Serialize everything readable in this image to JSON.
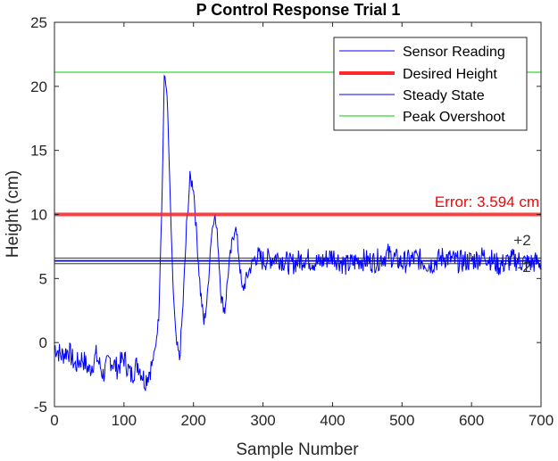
{
  "chart_data": {
    "type": "line",
    "title": "P Control Response Trial 1",
    "xlabel": "Sample Number",
    "ylabel": "Height (cm)",
    "xlim": [
      0,
      700
    ],
    "ylim": [
      -5,
      25
    ],
    "xticks": [
      "0",
      "100",
      "200",
      "300",
      "400",
      "500",
      "600",
      "700"
    ],
    "yticks": [
      "-5",
      "0",
      "5",
      "10",
      "15",
      "20",
      "25"
    ],
    "grid": false,
    "legend_position": "top-right",
    "series": [
      {
        "name": "Sensor Reading",
        "color": "#0000ff",
        "x": [
          0,
          10,
          20,
          30,
          40,
          50,
          60,
          70,
          80,
          90,
          100,
          110,
          120,
          130,
          140,
          145,
          150,
          155,
          158,
          162,
          165,
          170,
          175,
          180,
          185,
          190,
          195,
          200,
          205,
          210,
          215,
          220,
          225,
          230,
          235,
          240,
          245,
          250,
          255,
          260,
          265,
          270,
          280,
          290,
          300,
          320,
          340,
          360,
          380,
          400,
          420,
          440,
          460,
          480,
          500,
          520,
          540,
          560,
          580,
          600,
          620,
          640,
          660,
          680,
          700
        ],
        "y": [
          -0.3,
          -1.0,
          -0.6,
          -1.8,
          -1.2,
          -2.2,
          -1.0,
          -2.5,
          -1.3,
          -2.0,
          -1.2,
          -2.6,
          -1.6,
          -3.0,
          -1.8,
          -0.5,
          2.0,
          12.0,
          20.8,
          19.5,
          14.0,
          5.0,
          0.0,
          -1.3,
          3.0,
          9.0,
          12.8,
          12.2,
          8.0,
          4.0,
          1.5,
          3.5,
          8.0,
          10.2,
          8.0,
          3.5,
          2.5,
          5.5,
          7.5,
          9.2,
          7.0,
          4.0,
          5.6,
          6.8,
          6.4,
          6.7,
          6.1,
          6.6,
          6.2,
          6.8,
          6.0,
          6.5,
          6.3,
          6.9,
          6.2,
          6.6,
          6.1,
          6.7,
          6.3,
          6.4,
          6.8,
          6.0,
          6.5,
          6.2,
          6.3
        ]
      },
      {
        "name": "Desired Height",
        "color": "#ff2a2a",
        "y": 10
      },
      {
        "name": "Steady State",
        "color": "#0000ff",
        "y": 6.406
      },
      {
        "name": "Peak Overshoot",
        "color": "#00cc00",
        "y": 21.1
      }
    ],
    "band_lines": {
      "values": [
        6.15,
        6.35,
        6.6
      ],
      "color": "#333333"
    },
    "annotations": [
      {
        "text": "Error: 3.594 cm",
        "color": "#ff0000",
        "x": 700,
        "y": 10.6,
        "align": "right"
      },
      {
        "text": "+2",
        "color": "#333333",
        "x": 688,
        "y": 7.6,
        "align": "right"
      },
      {
        "text": "-2",
        "color": "#333333",
        "x": 688,
        "y": 5.5,
        "align": "right"
      }
    ]
  }
}
